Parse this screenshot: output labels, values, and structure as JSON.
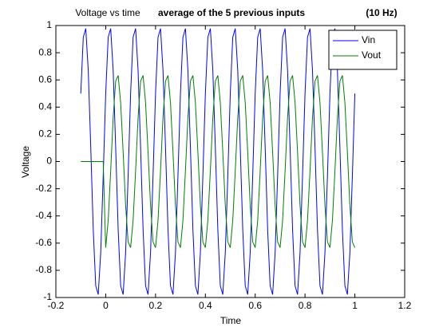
{
  "chart_data": {
    "type": "line",
    "title": "Voltage vs time",
    "subtitle": "average of the 5 previous inputs",
    "annotation": "(10 Hz)",
    "xlabel": "Time",
    "ylabel": "Voltage",
    "xlim": [
      -0.2,
      1.2
    ],
    "xticks": [
      -0.2,
      0,
      0.2,
      0.4,
      0.6,
      0.8,
      1,
      1.2
    ],
    "ylim": [
      -1,
      1
    ],
    "yticks": [
      -1,
      -0.8,
      -0.6,
      -0.4,
      -0.2,
      0,
      0.2,
      0.4,
      0.6,
      0.8,
      1
    ],
    "legend": "top-right",
    "x": [
      -0.1,
      -0.09,
      -0.08,
      -0.07,
      -0.06,
      -0.05,
      -0.04,
      -0.03,
      -0.02,
      -0.01,
      0,
      0.01,
      0.02,
      0.03,
      0.04,
      0.05,
      0.06,
      0.07,
      0.08,
      0.09,
      0.1,
      0.11,
      0.12,
      0.13,
      0.14,
      0.15,
      0.16,
      0.17,
      0.18,
      0.19,
      0.2,
      0.21,
      0.22,
      0.23,
      0.24,
      0.25,
      0.26,
      0.27,
      0.28,
      0.29,
      0.3,
      0.31,
      0.32,
      0.33,
      0.34,
      0.35,
      0.36,
      0.37,
      0.38,
      0.39,
      0.4,
      0.41,
      0.42,
      0.43,
      0.44,
      0.45,
      0.46,
      0.47,
      0.48,
      0.49,
      0.5,
      0.51,
      0.52,
      0.53,
      0.54,
      0.55,
      0.56,
      0.57,
      0.58,
      0.59,
      0.6,
      0.61,
      0.62,
      0.63,
      0.64,
      0.65,
      0.66,
      0.67,
      0.68,
      0.69,
      0.7,
      0.71,
      0.72,
      0.73,
      0.74,
      0.75,
      0.76,
      0.77,
      0.78,
      0.79,
      0.8,
      0.81,
      0.82,
      0.83,
      0.84,
      0.85,
      0.86,
      0.87,
      0.88,
      0.89,
      0.9,
      0.91,
      0.92,
      0.93,
      0.94,
      0.95,
      0.96,
      0.97,
      0.98,
      0.99,
      1
    ],
    "series": [
      {
        "name": "Vin",
        "color": "#0000ff",
        "values": [
          0.5,
          0.914,
          0.978,
          0.669,
          0.105,
          -0.5,
          -0.914,
          -0.978,
          -0.669,
          -0.105,
          0.5,
          0.914,
          0.978,
          0.669,
          0.105,
          -0.5,
          -0.914,
          -0.978,
          -0.669,
          -0.105,
          0.5,
          0.914,
          0.978,
          0.669,
          0.105,
          -0.5,
          -0.914,
          -0.978,
          -0.669,
          -0.105,
          0.5,
          0.914,
          0.978,
          0.669,
          0.105,
          -0.5,
          -0.914,
          -0.978,
          -0.669,
          -0.105,
          0.5,
          0.914,
          0.978,
          0.669,
          0.105,
          -0.5,
          -0.914,
          -0.978,
          -0.669,
          -0.105,
          0.5,
          0.914,
          0.978,
          0.669,
          0.105,
          -0.5,
          -0.914,
          -0.978,
          -0.669,
          -0.105,
          0.5,
          0.914,
          0.978,
          0.669,
          0.105,
          -0.5,
          -0.914,
          -0.978,
          -0.669,
          -0.105,
          0.5,
          0.914,
          0.978,
          0.669,
          0.105,
          -0.5,
          -0.914,
          -0.978,
          -0.669,
          -0.105,
          0.5,
          0.914,
          0.978,
          0.669,
          0.105,
          -0.5,
          -0.914,
          -0.978,
          -0.669,
          -0.105,
          0.5,
          0.914,
          0.978,
          0.669,
          0.105,
          -0.5,
          -0.914,
          -0.978,
          -0.669,
          -0.105,
          0.5,
          0.914,
          0.978,
          0.669,
          0.105,
          -0.5,
          -0.914,
          -0.978,
          -0.669,
          -0.105,
          0.5
        ]
      },
      {
        "name": "Vout",
        "color": "#008000",
        "values": [
          0,
          0,
          0,
          0,
          0,
          0,
          0,
          0,
          0,
          0,
          -0.633,
          -0.433,
          -0.068,
          0.324,
          0.591,
          0.633,
          0.433,
          0.068,
          -0.324,
          -0.591,
          -0.633,
          -0.433,
          -0.068,
          0.324,
          0.591,
          0.633,
          0.433,
          0.068,
          -0.324,
          -0.591,
          -0.633,
          -0.433,
          -0.068,
          0.324,
          0.591,
          0.633,
          0.433,
          0.068,
          -0.324,
          -0.591,
          -0.633,
          -0.433,
          -0.068,
          0.324,
          0.591,
          0.633,
          0.433,
          0.068,
          -0.324,
          -0.591,
          -0.633,
          -0.433,
          -0.068,
          0.324,
          0.591,
          0.633,
          0.433,
          0.068,
          -0.324,
          -0.591,
          -0.633,
          -0.433,
          -0.068,
          0.324,
          0.591,
          0.633,
          0.433,
          0.068,
          -0.324,
          -0.591,
          -0.633,
          -0.433,
          -0.068,
          0.324,
          0.591,
          0.633,
          0.433,
          0.068,
          -0.324,
          -0.591,
          -0.633,
          -0.433,
          -0.068,
          0.324,
          0.591,
          0.633,
          0.433,
          0.068,
          -0.324,
          -0.591,
          -0.633,
          -0.433,
          -0.068,
          0.324,
          0.591,
          0.633,
          0.433,
          0.068,
          -0.324,
          -0.591,
          -0.633,
          -0.433,
          -0.068,
          0.324,
          0.591,
          0.633,
          0.433,
          0.068,
          -0.324,
          -0.591,
          -0.633
        ]
      }
    ]
  }
}
